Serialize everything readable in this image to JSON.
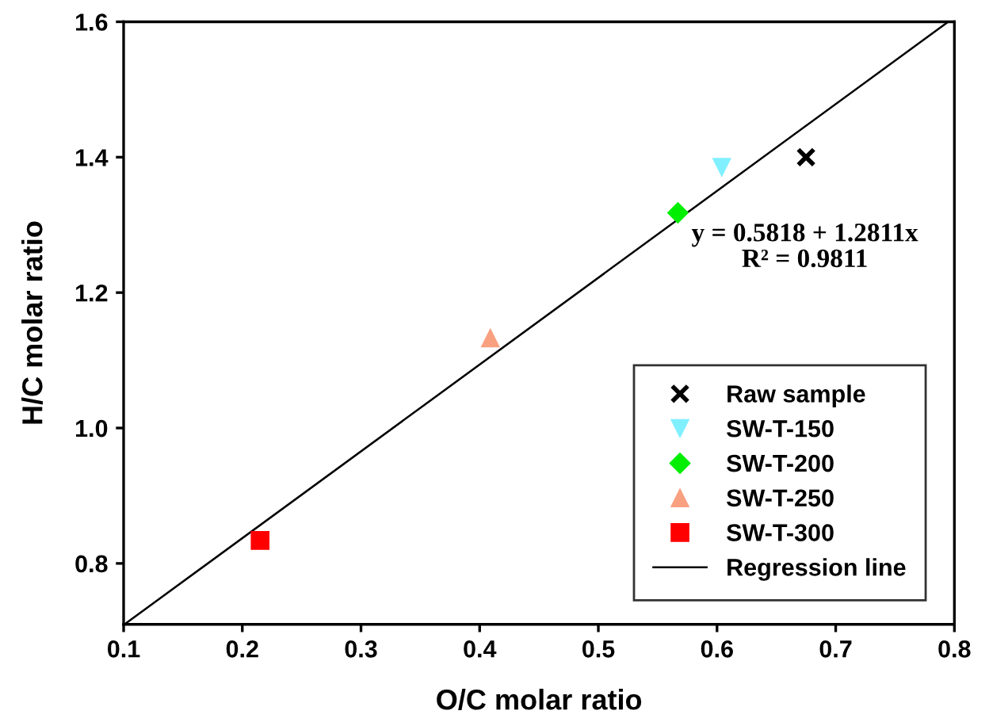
{
  "chart_data": {
    "type": "scatter",
    "xlabel": "O/C molar ratio",
    "ylabel": "H/C molar ratio",
    "xlim": [
      0.1,
      0.8
    ],
    "xticks": [
      0.1,
      0.2,
      0.3,
      0.4,
      0.5,
      0.6,
      0.7,
      0.8
    ],
    "ylim": [
      0.71,
      1.6
    ],
    "yticks": [
      0.8,
      {
        "value": 1.0,
        "label": "1.0"
      },
      1.2,
      1.4,
      1.6
    ],
    "grid": false,
    "legend": "bottom right",
    "series": [
      {
        "name": "Raw sample",
        "color": "#000000",
        "marker": "cross",
        "x": [
          0.675
        ],
        "values": [
          1.4
        ]
      },
      {
        "name": "SW-T-150",
        "color": "#80f0ff",
        "marker": "triangle_down",
        "x": [
          0.604
        ],
        "values": [
          1.385
        ]
      },
      {
        "name": "SW-T-200",
        "color": "#00ee00",
        "marker": "diamond",
        "x": [
          0.567
        ],
        "values": [
          1.318
        ]
      },
      {
        "name": "SW-T-250",
        "color": "#f8a080",
        "marker": "triangle",
        "x": [
          0.409
        ],
        "values": [
          1.133
        ]
      },
      {
        "name": "SW-T-300",
        "color": "#ff0000",
        "marker": "square",
        "x": [
          0.215
        ],
        "values": [
          0.834
        ]
      },
      {
        "name": "Regression line",
        "type": "line",
        "color": "#000000",
        "line_style": "solid",
        "marker": "none",
        "x": [
          0.1007,
          0.7948
        ],
        "values": [
          0.71,
          1.6
        ]
      }
    ],
    "annotations": [
      "y = 0.5818 + 1.2811x\nR² = 0.9811"
    ]
  }
}
